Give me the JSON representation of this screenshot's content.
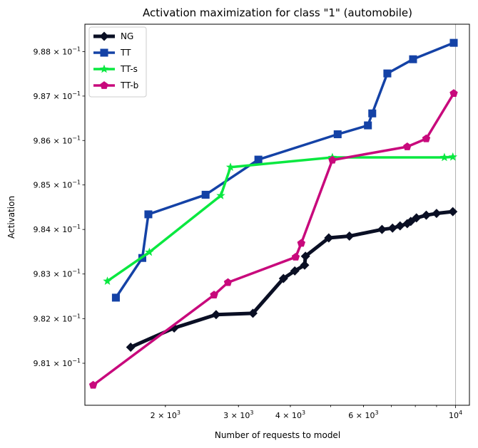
{
  "chart_data": {
    "type": "line",
    "title": "Activation maximization for class \"1\" (automobile)",
    "xlabel": "Number of requests to model",
    "ylabel": "Activation",
    "x_scale": "log",
    "y_scale": "log",
    "xlim": [
      1280,
      10800
    ],
    "ylim": [
      0.98006,
      0.98862
    ],
    "x_ticks": [
      {
        "value": 2000,
        "mantissa": "2",
        "exponent": "3"
      },
      {
        "value": 3000,
        "mantissa": "3",
        "exponent": "3"
      },
      {
        "value": 4000,
        "mantissa": "4",
        "exponent": "3"
      },
      {
        "value": 6000,
        "mantissa": "6",
        "exponent": "3"
      },
      {
        "value": 10000,
        "mantissa": "",
        "exponent": "4"
      }
    ],
    "y_ticks": [
      {
        "value": 0.981,
        "mantissa": "9.81",
        "exponent": "−1"
      },
      {
        "value": 0.982,
        "mantissa": "9.82",
        "exponent": "−1"
      },
      {
        "value": 0.983,
        "mantissa": "9.83",
        "exponent": "−1"
      },
      {
        "value": 0.984,
        "mantissa": "9.84",
        "exponent": "−1"
      },
      {
        "value": 0.985,
        "mantissa": "9.85",
        "exponent": "−1"
      },
      {
        "value": 0.986,
        "mantissa": "9.86",
        "exponent": "−1"
      },
      {
        "value": 0.987,
        "mantissa": "9.87",
        "exponent": "−1"
      },
      {
        "value": 0.988,
        "mantissa": "9.88",
        "exponent": "−1"
      }
    ],
    "vline_x": 10000,
    "grid": false,
    "legend_position": "top-left",
    "series": [
      {
        "name": "NG",
        "color": "#0a0f24",
        "marker": "diamond",
        "width": 5,
        "points": [
          [
            1650,
            0.98136
          ],
          [
            2100,
            0.98179
          ],
          [
            2650,
            0.98209
          ],
          [
            3250,
            0.98212
          ],
          [
            3850,
            0.9829
          ],
          [
            4100,
            0.98307
          ],
          [
            4330,
            0.9832
          ],
          [
            4350,
            0.9834
          ],
          [
            4950,
            0.98381
          ],
          [
            5550,
            0.98385
          ],
          [
            6650,
            0.984
          ],
          [
            7050,
            0.98403
          ],
          [
            7350,
            0.98408
          ],
          [
            7650,
            0.98413
          ],
          [
            7800,
            0.98418
          ],
          [
            8050,
            0.98426
          ],
          [
            8500,
            0.98432
          ],
          [
            9000,
            0.98436
          ],
          [
            9850,
            0.9844
          ]
        ]
      },
      {
        "name": "TT",
        "color": "#1442a6",
        "marker": "square",
        "width": 3.5,
        "points": [
          [
            1520,
            0.98247
          ],
          [
            1760,
            0.98336
          ],
          [
            1820,
            0.98434
          ],
          [
            2500,
            0.98478
          ],
          [
            3350,
            0.98557
          ],
          [
            5200,
            0.98614
          ],
          [
            6150,
            0.98634
          ],
          [
            6300,
            0.98661
          ],
          [
            6850,
            0.98751
          ],
          [
            7900,
            0.98783
          ],
          [
            9900,
            0.9882
          ]
        ]
      },
      {
        "name": "TT-s",
        "color": "#0ae840",
        "marker": "star",
        "width": 3.5,
        "points": [
          [
            1450,
            0.98284
          ],
          [
            1830,
            0.98349
          ],
          [
            2720,
            0.98476
          ],
          [
            2870,
            0.9854
          ],
          [
            5050,
            0.98562
          ],
          [
            9400,
            0.98562
          ],
          [
            9850,
            0.98563
          ]
        ]
      },
      {
        "name": "TT-b",
        "color": "#c8097c",
        "marker": "pentagon",
        "width": 3.5,
        "points": [
          [
            1340,
            0.98051
          ],
          [
            2620,
            0.98253
          ],
          [
            2830,
            0.98281
          ],
          [
            4120,
            0.98338
          ],
          [
            4250,
            0.98369
          ],
          [
            5050,
            0.98556
          ],
          [
            7650,
            0.98586
          ],
          [
            8500,
            0.98604
          ],
          [
            9900,
            0.98706
          ]
        ]
      }
    ]
  }
}
